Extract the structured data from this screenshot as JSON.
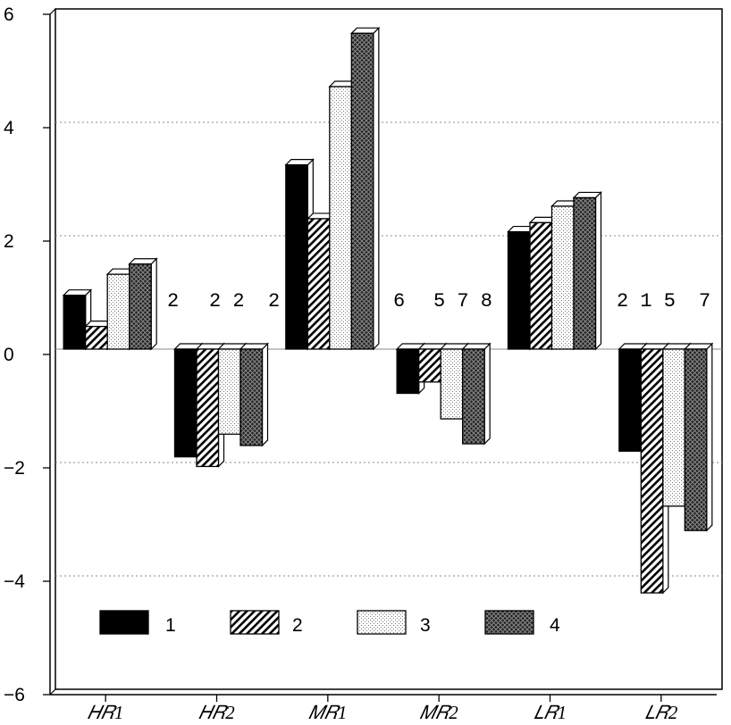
{
  "chart_data": {
    "type": "bar",
    "title": "",
    "xlabel": "",
    "ylabel": "",
    "ylim": [
      -6,
      6
    ],
    "yticks": [
      6,
      4,
      2,
      0,
      -2,
      -4,
      -6
    ],
    "ytick_labels": [
      "6",
      "4",
      "2",
      "0",
      "−2",
      "−4",
      "−6"
    ],
    "grid": "horizontal dotted",
    "legend_placement": "bottom-left",
    "categories": [
      "𝐻𝑅1",
      "𝐻𝑅2",
      "𝑀𝑅1",
      "𝑀𝑅2",
      "𝐿𝑅1",
      "𝐿𝑅2"
    ],
    "series": [
      {
        "name": "1",
        "pattern": "solid",
        "values": [
          0.95,
          -1.9,
          3.25,
          -0.78,
          2.07,
          -1.8
        ]
      },
      {
        "name": "2",
        "pattern": "hatch",
        "values": [
          0.4,
          -2.07,
          2.3,
          -0.58,
          2.23,
          -4.3
        ]
      },
      {
        "name": "3",
        "pattern": "dots",
        "values": [
          1.32,
          -1.5,
          4.63,
          -1.23,
          2.52,
          -2.77
        ]
      },
      {
        "name": "4",
        "pattern": "crosshatch",
        "values": [
          1.5,
          -1.7,
          5.57,
          -1.67,
          2.67,
          -3.2
        ]
      }
    ],
    "annotations": [
      "2",
      "2 2",
      "2",
      "6",
      "5 7 8",
      "2 1 5",
      "7"
    ]
  }
}
